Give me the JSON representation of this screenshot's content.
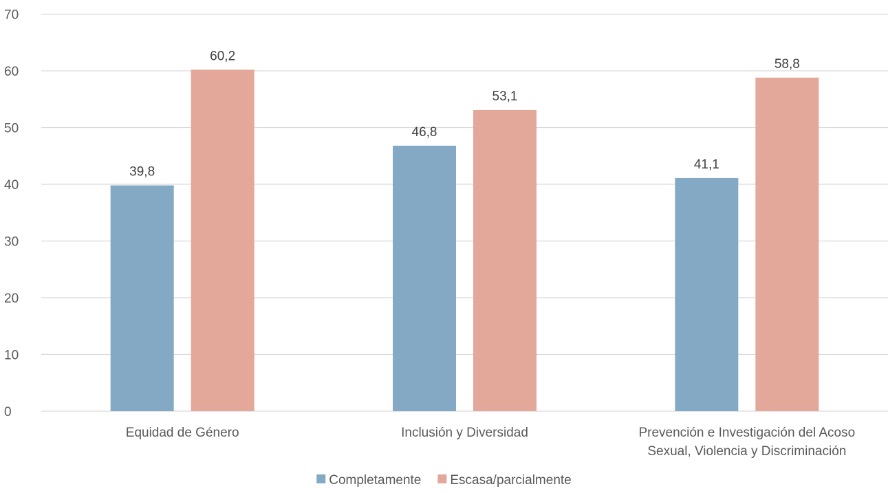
{
  "chart_data": {
    "type": "bar",
    "categories": [
      [
        "Equidad de Género"
      ],
      [
        "Inclusión y Diversidad"
      ],
      [
        "Prevención e Investigación del Acoso",
        "Sexual, Violencia y Discriminación"
      ]
    ],
    "series": [
      {
        "name": "Completamente",
        "color": "#84a9c4",
        "values": [
          39.8,
          46.8,
          41.1
        ],
        "labels": [
          "39,8",
          "46,8",
          "41,1"
        ]
      },
      {
        "name": "Escasa/parcialmente",
        "color": "#e3a899",
        "values": [
          60.2,
          53.1,
          58.8
        ],
        "labels": [
          "60,2",
          "53,1",
          "58,8"
        ]
      }
    ],
    "ylim": [
      0,
      70
    ],
    "yticks": [
      0,
      10,
      20,
      30,
      40,
      50,
      60,
      70
    ],
    "grid": true,
    "legend": "bottom-center"
  }
}
